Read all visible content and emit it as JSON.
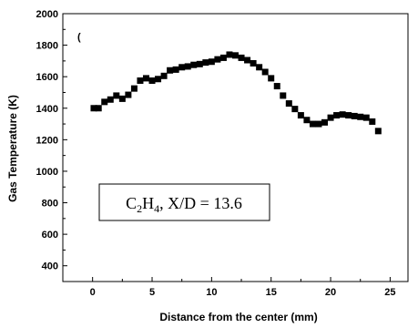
{
  "chart_data": {
    "type": "scatter",
    "title": "",
    "xlabel": "Distance from the center (mm)",
    "ylabel": "Gas Temperature (K)",
    "xlim": [
      -2.5,
      26.5
    ],
    "ylim": [
      300,
      2000
    ],
    "xticks": [
      0,
      5,
      10,
      15,
      20,
      25
    ],
    "yticks": [
      400,
      600,
      800,
      1000,
      1200,
      1400,
      1600,
      1800,
      2000
    ],
    "marker": "square",
    "color": "#000000",
    "panel_mark": "(",
    "annotation": {
      "parts": [
        "C",
        "2",
        "H",
        "4",
        ", X/D = 13.6"
      ]
    },
    "series": [
      {
        "x": [
          0.1,
          0.5,
          1.0,
          1.5,
          2.0,
          2.5,
          3.0,
          3.5,
          4.0,
          4.5,
          5.0,
          5.5,
          6.0,
          6.5,
          7.0,
          7.5,
          8.0,
          8.5,
          9.0,
          9.5,
          10.0,
          10.5,
          11.0,
          11.5,
          12.0,
          12.5,
          13.0,
          13.5,
          14.0,
          14.5,
          15.0,
          15.5,
          16.0,
          16.5,
          17.0,
          17.5,
          18.0,
          18.5,
          19.0,
          19.5,
          20.0,
          20.5,
          21.0,
          21.5,
          22.0,
          22.5,
          23.0,
          23.5,
          24.0
        ],
        "y": [
          1400,
          1400,
          1440,
          1455,
          1480,
          1460,
          1485,
          1525,
          1575,
          1590,
          1575,
          1585,
          1605,
          1640,
          1645,
          1660,
          1665,
          1675,
          1680,
          1690,
          1695,
          1710,
          1720,
          1740,
          1735,
          1720,
          1705,
          1685,
          1660,
          1630,
          1590,
          1540,
          1480,
          1430,
          1395,
          1355,
          1325,
          1300,
          1300,
          1310,
          1340,
          1355,
          1360,
          1355,
          1350,
          1345,
          1340,
          1315,
          1255
        ]
      }
    ]
  }
}
